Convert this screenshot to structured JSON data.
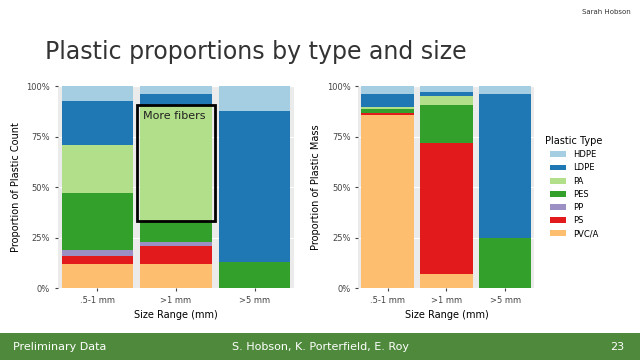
{
  "slide": {
    "title": "Plastic proportions by type and size",
    "footer_left": "Preliminary Data",
    "footer_center": "S. Hobson, K. Porterfield, E. Roy",
    "footer_right": "23",
    "speaker": "Sarah Hobson"
  },
  "chart_data": [
    {
      "type": "bar",
      "stacked": true,
      "grid": true,
      "x_label": "Size Range (mm)",
      "y_label": "Proportion of Plastic Count",
      "categories": [
        ".5-1 mm",
        ">1 mm",
        ">5 mm"
      ],
      "ylim": [
        0,
        100
      ],
      "yticks": [
        {
          "value": 0,
          "label": "0%"
        },
        {
          "value": 25,
          "label": "25%"
        },
        {
          "value": 50,
          "label": "50%"
        },
        {
          "value": 75,
          "label": "75%"
        },
        {
          "value": 100,
          "label": "100%"
        }
      ],
      "series": [
        {
          "name": "PVC/A",
          "color": "#fdbf6f",
          "values": [
            12,
            12,
            0
          ]
        },
        {
          "name": "PS",
          "color": "#e31a1c",
          "values": [
            4,
            9,
            0
          ]
        },
        {
          "name": "PP",
          "color": "#9b8fc4",
          "values": [
            3,
            2,
            0
          ]
        },
        {
          "name": "PES",
          "color": "#33a02c",
          "values": [
            28,
            10,
            13
          ]
        },
        {
          "name": "PA",
          "color": "#b2df8a",
          "values": [
            24,
            58,
            0
          ]
        },
        {
          "name": "LDPE",
          "color": "#1f78b4",
          "values": [
            22,
            5,
            75
          ]
        },
        {
          "name": "HDPE",
          "color": "#a6cee3",
          "values": [
            7,
            4,
            12
          ]
        }
      ],
      "annotations": [
        {
          "text": "More fibers",
          "category": ">1 mm",
          "series": "PA"
        }
      ]
    },
    {
      "type": "bar",
      "stacked": true,
      "grid": true,
      "x_label": "Size Range (mm)",
      "y_label": "Proportion of Plastic Mass",
      "categories": [
        ".5-1 mm",
        ">1 mm",
        ">5 mm"
      ],
      "ylim": [
        0,
        100
      ],
      "yticks": [
        {
          "value": 0,
          "label": "0%"
        },
        {
          "value": 25,
          "label": "25%"
        },
        {
          "value": 50,
          "label": "50%"
        },
        {
          "value": 75,
          "label": "75%"
        },
        {
          "value": 100,
          "label": "100%"
        }
      ],
      "legend": "right",
      "legend_title": "Plastic Type",
      "series": [
        {
          "name": "PVC/A",
          "color": "#fdbf6f",
          "values": [
            86,
            7,
            0
          ]
        },
        {
          "name": "PS",
          "color": "#e31a1c",
          "values": [
            1,
            65,
            0
          ]
        },
        {
          "name": "PP",
          "color": "#9b8fc4",
          "values": [
            0,
            0,
            0
          ]
        },
        {
          "name": "PES",
          "color": "#33a02c",
          "values": [
            2,
            19,
            25
          ]
        },
        {
          "name": "PA",
          "color": "#b2df8a",
          "values": [
            1,
            4,
            0
          ]
        },
        {
          "name": "LDPE",
          "color": "#1f78b4",
          "values": [
            6,
            2,
            71
          ]
        },
        {
          "name": "HDPE",
          "color": "#a6cee3",
          "values": [
            4,
            3,
            4
          ]
        }
      ]
    }
  ]
}
